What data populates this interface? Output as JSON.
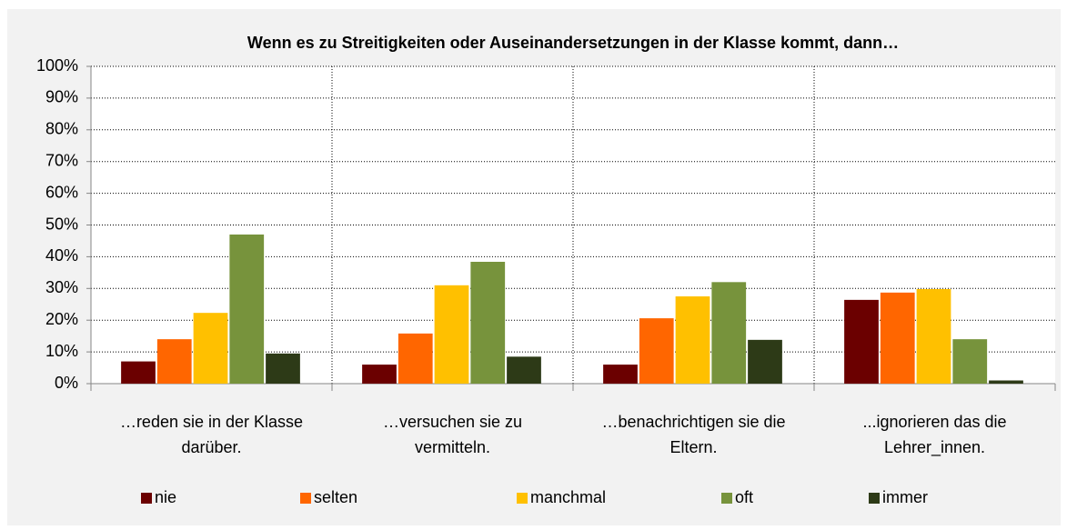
{
  "chart_data": {
    "type": "bar",
    "title": "Wenn es zu Streitigkeiten oder Auseinandersetzungen in der Klasse kommt, dann…",
    "categories": [
      "…reden sie in der Klasse darüber.",
      "…versuchen sie zu vermitteln.",
      "…benachrichtigen sie die Eltern.",
      "...ignorieren das die Lehrer_innen."
    ],
    "series": [
      {
        "name": "nie",
        "color": "#6b0000",
        "values": [
          7,
          6,
          6,
          26.4
        ]
      },
      {
        "name": "selten",
        "color": "#ff6600",
        "values": [
          14,
          15.8,
          20.6,
          28.7
        ]
      },
      {
        "name": "manchmal",
        "color": "#ffc000",
        "values": [
          22.3,
          31,
          27.5,
          29.8
        ]
      },
      {
        "name": "oft",
        "color": "#77933c",
        "values": [
          47,
          38.4,
          32,
          14
        ]
      },
      {
        "name": "immer",
        "color": "#2d3a17",
        "values": [
          9.5,
          8.5,
          13.8,
          1
        ]
      }
    ],
    "ylim": [
      0,
      100
    ],
    "yticks": [
      {
        "value": 0,
        "label": "0%"
      },
      {
        "value": 10,
        "label": "10%"
      },
      {
        "value": 20,
        "label": "20%"
      },
      {
        "value": 30,
        "label": "30%"
      },
      {
        "value": 40,
        "label": "40%"
      },
      {
        "value": 50,
        "label": "50%"
      },
      {
        "value": 60,
        "label": "60%"
      },
      {
        "value": 70,
        "label": "70%"
      },
      {
        "value": 80,
        "label": "80%"
      },
      {
        "value": 90,
        "label": "90%"
      },
      {
        "value": 100,
        "label": "100%"
      }
    ],
    "grid": true,
    "legend": "bottom"
  }
}
